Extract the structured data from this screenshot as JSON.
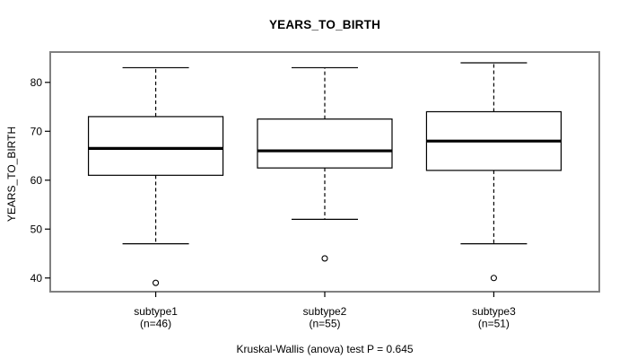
{
  "figure": {
    "title": "YEARS_TO_BIRTH",
    "y_axis_label": "YEARS_TO_BIRTH",
    "caption": "Kruskal-Wallis (anova) test P = 0.645"
  },
  "colors": {
    "ink": "#000000",
    "frame": "#808080",
    "background": "#ffffff"
  },
  "chart_data": {
    "type": "boxplot",
    "title": "YEARS_TO_BIRTH",
    "ylabel": "YEARS_TO_BIRTH",
    "xlabel": "",
    "categories": [
      "subtype1",
      "subtype2",
      "subtype3"
    ],
    "category_sublabels": [
      "(n=46)",
      "(n=55)",
      "(n=51)"
    ],
    "sample_sizes": [
      46,
      55,
      51
    ],
    "yticks": [
      40,
      50,
      60,
      70,
      80
    ],
    "ylim": [
      37.2,
      86.2
    ],
    "grid": false,
    "legend_position": "none",
    "annotation": "Kruskal-Wallis (anova) test P = 0.645",
    "p_value": 0.645,
    "series": [
      {
        "name": "subtype1",
        "n": 46,
        "whisker_low": 47,
        "q1": 61,
        "median": 66.5,
        "q3": 73,
        "whisker_high": 83,
        "outliers": [
          39
        ]
      },
      {
        "name": "subtype2",
        "n": 55,
        "whisker_low": 52,
        "q1": 62.5,
        "median": 66,
        "q3": 72.5,
        "whisker_high": 83,
        "outliers": [
          44
        ]
      },
      {
        "name": "subtype3",
        "n": 51,
        "whisker_low": 47,
        "q1": 62,
        "median": 68,
        "q3": 74,
        "whisker_high": 84,
        "outliers": [
          40
        ]
      }
    ]
  }
}
